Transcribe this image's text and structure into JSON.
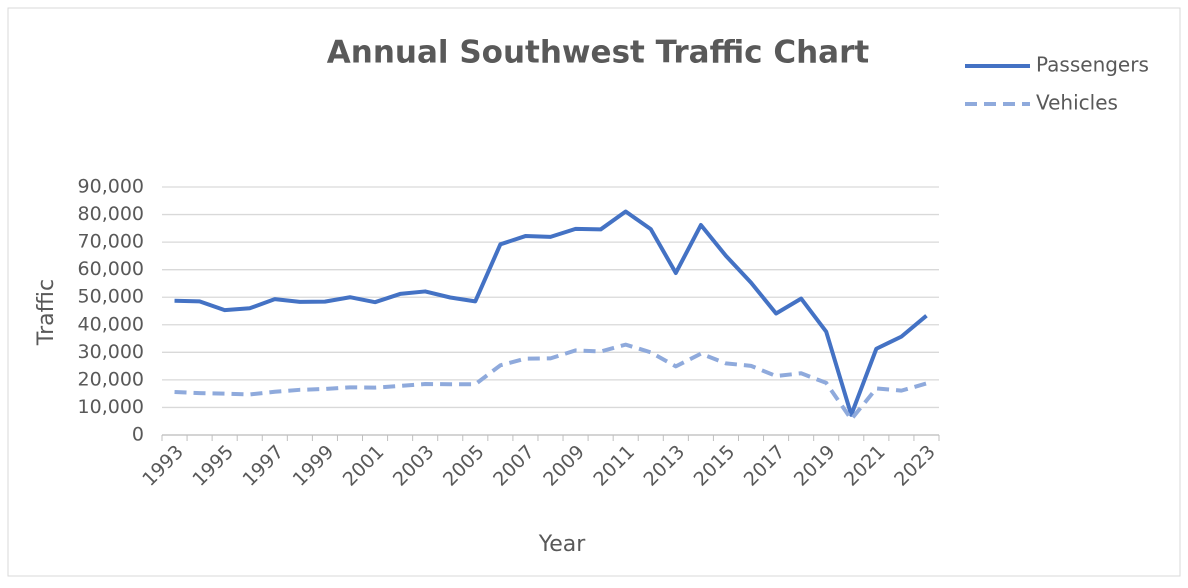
{
  "chart_data": {
    "type": "line",
    "title": "Annual Southwest Traffic Chart",
    "x_label": "Year",
    "y_label": "Traffic",
    "categories": [
      "1993",
      null,
      "1995",
      null,
      "1997",
      null,
      "1999",
      null,
      "2001",
      null,
      "2003",
      null,
      "2005",
      null,
      "2007",
      null,
      "2009",
      null,
      "2011",
      null,
      "2013",
      null,
      "2015",
      null,
      "2017",
      null,
      "2019",
      null,
      "2021",
      null,
      "2023"
    ],
    "series": [
      {
        "name": "Passengers",
        "color": "#4472c4",
        "dash": false,
        "values": [
          48700,
          48500,
          45300,
          46000,
          49300,
          48300,
          48400,
          50000,
          48200,
          51200,
          52100,
          49900,
          48500,
          69200,
          72200,
          71900,
          74800,
          74600,
          81100,
          74700,
          58800,
          76200,
          65000,
          55300,
          44100,
          49500,
          37500,
          7300,
          31300,
          35700,
          43300
        ]
      },
      {
        "name": "Vehicles",
        "color": "#8faadc",
        "dash": true,
        "values": [
          15600,
          15200,
          15000,
          14700,
          15700,
          16400,
          16700,
          17300,
          17200,
          17800,
          18500,
          18400,
          18400,
          25300,
          27700,
          27800,
          30700,
          30300,
          32800,
          30000,
          24900,
          29500,
          26000,
          25100,
          21400,
          22400,
          18900,
          5700,
          16900,
          16100,
          18700
        ]
      }
    ],
    "ylim": [
      0,
      90000
    ],
    "yticks": [
      0,
      {
        "value": 10000,
        "label": "10,000"
      },
      {
        "value": 20000,
        "label": "20,000"
      },
      {
        "value": 30000,
        "label": "30,000"
      },
      {
        "value": 40000,
        "label": "40,000"
      },
      {
        "value": 50000,
        "label": "50,000"
      },
      {
        "value": 60000,
        "label": "60,000"
      },
      {
        "value": 70000,
        "label": "70,000"
      },
      {
        "value": 80000,
        "label": "80,000"
      },
      {
        "value": 90000,
        "label": "90,000"
      }
    ],
    "grid": true,
    "legend": "top-right"
  }
}
